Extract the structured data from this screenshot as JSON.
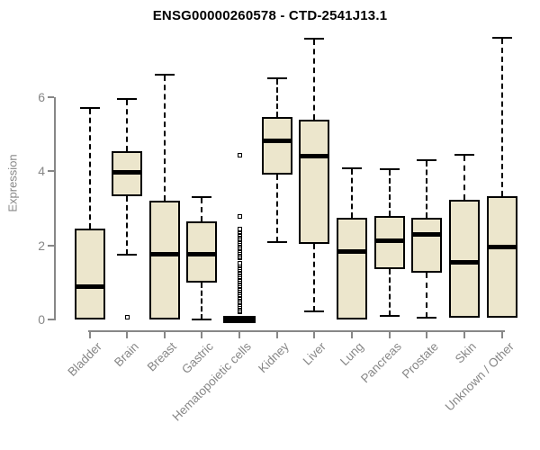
{
  "chart_data": {
    "type": "boxplot",
    "title": "ENSG00000260578 - CTD-2541J13.1",
    "xlabel": "",
    "ylabel": "Expression",
    "yticks": [
      0,
      2,
      4,
      6
    ],
    "ylim": [
      0,
      7.7
    ],
    "grid": false,
    "legend": false,
    "x_label_rotation": 45,
    "colors": {
      "box_fill": "#ECE6CC",
      "box_line": "#000000",
      "axis": "#878787",
      "title": "#000000",
      "background": "#ffffff"
    },
    "categories": [
      "Bladder",
      "Brain",
      "Breast",
      "Gastric",
      "Hematopoietic cells",
      "Kidney",
      "Liver",
      "Lung",
      "Pancreas",
      "Prostate",
      "Skin",
      "Unknown / Other"
    ],
    "boxes": [
      {
        "category": "Bladder",
        "whisker_low": 0,
        "q1": 0,
        "median": 0.9,
        "q3": 2.45,
        "whisker_high": 5.7,
        "outliers": []
      },
      {
        "category": "Brain",
        "whisker_low": 1.75,
        "q1": 3.33,
        "median": 3.98,
        "q3": 4.55,
        "whisker_high": 5.95,
        "outliers": [
          0.05
        ]
      },
      {
        "category": "Breast",
        "whisker_low": 0,
        "q1": 0,
        "median": 1.78,
        "q3": 3.2,
        "whisker_high": 6.6,
        "outliers": []
      },
      {
        "category": "Gastric",
        "whisker_low": 0,
        "q1": 1.0,
        "median": 1.77,
        "q3": 2.65,
        "whisker_high": 3.3,
        "outliers": []
      },
      {
        "category": "Hematopoietic cells",
        "whisker_low": 0,
        "q1": 0,
        "median": 0,
        "q3": 0,
        "whisker_high": 0,
        "outliers": [
          0.2,
          0.24,
          0.28,
          0.32,
          0.36,
          0.4,
          0.44,
          0.48,
          0.52,
          0.56,
          0.6,
          0.64,
          0.68,
          0.72,
          0.76,
          0.8,
          0.84,
          0.88,
          0.92,
          0.96,
          1.0,
          1.04,
          1.08,
          1.12,
          1.16,
          1.2,
          1.24,
          1.28,
          1.32,
          1.36,
          1.4,
          1.44,
          1.48,
          1.52,
          1.66,
          1.7,
          1.74,
          1.78,
          1.82,
          1.86,
          1.9,
          1.94,
          1.98,
          2.02,
          2.06,
          2.1,
          2.14,
          2.18,
          2.22,
          2.26,
          2.3,
          2.34,
          2.38,
          2.42,
          2.45,
          2.77,
          4.44
        ]
      },
      {
        "category": "Kidney",
        "whisker_low": 2.1,
        "q1": 3.9,
        "median": 4.83,
        "q3": 5.47,
        "whisker_high": 6.5,
        "outliers": []
      },
      {
        "category": "Liver",
        "whisker_low": 0.22,
        "q1": 2.04,
        "median": 4.42,
        "q3": 5.39,
        "whisker_high": 7.58,
        "outliers": []
      },
      {
        "category": "Lung",
        "whisker_low": 0,
        "q1": 0,
        "median": 1.85,
        "q3": 2.74,
        "whisker_high": 4.08,
        "outliers": []
      },
      {
        "category": "Pancreas",
        "whisker_low": 0.1,
        "q1": 1.36,
        "median": 2.14,
        "q3": 2.79,
        "whisker_high": 4.05,
        "outliers": []
      },
      {
        "category": "Prostate",
        "whisker_low": 0.05,
        "q1": 1.26,
        "median": 2.3,
        "q3": 2.74,
        "whisker_high": 4.3,
        "outliers": []
      },
      {
        "category": "Skin",
        "whisker_low": 0.05,
        "q1": 0.05,
        "median": 1.55,
        "q3": 3.23,
        "whisker_high": 4.44,
        "outliers": []
      },
      {
        "category": "Unknown / Other",
        "whisker_low": 0.05,
        "q1": 0.05,
        "median": 1.97,
        "q3": 3.32,
        "whisker_high": 7.6,
        "outliers": []
      }
    ]
  }
}
